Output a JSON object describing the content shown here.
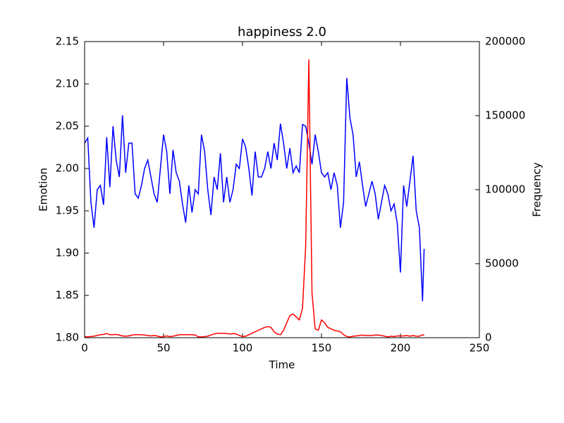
{
  "chart_data": {
    "type": "line",
    "title": "happiness 2.0",
    "x_label": "Time",
    "y_label": "Emotion",
    "y2_label": "Frequency",
    "x": [
      0,
      2,
      4,
      6,
      8,
      10,
      12,
      14,
      16,
      18,
      20,
      22,
      24,
      26,
      28,
      30,
      32,
      34,
      36,
      38,
      40,
      42,
      44,
      46,
      48,
      50,
      52,
      54,
      56,
      58,
      60,
      62,
      64,
      66,
      68,
      70,
      72,
      74,
      76,
      78,
      80,
      82,
      84,
      86,
      88,
      90,
      92,
      94,
      96,
      98,
      100,
      102,
      104,
      106,
      108,
      110,
      112,
      114,
      116,
      118,
      120,
      122,
      124,
      126,
      128,
      130,
      132,
      134,
      136,
      138,
      140,
      142,
      144,
      146,
      148,
      150,
      152,
      154,
      156,
      158,
      160,
      162,
      164,
      166,
      168,
      170,
      172,
      174,
      176,
      178,
      180,
      182,
      184,
      186,
      188,
      190,
      192,
      194,
      196,
      198,
      200,
      202,
      204,
      206,
      208,
      210,
      212,
      214,
      215
    ],
    "series": [
      {
        "name": "Emotion",
        "color": "#0000ff",
        "axis": "y",
        "values": [
          2.03,
          2.036,
          1.96,
          1.93,
          1.975,
          1.98,
          1.957,
          2.037,
          1.978,
          2.05,
          2.01,
          1.99,
          2.063,
          1.995,
          2.03,
          2.03,
          1.97,
          1.965,
          1.98,
          2.0,
          2.01,
          1.99,
          1.97,
          1.96,
          2.0,
          2.04,
          2.02,
          1.97,
          2.022,
          1.995,
          1.985,
          1.958,
          1.936,
          1.98,
          1.948,
          1.975,
          1.97,
          2.04,
          2.02,
          1.975,
          1.945,
          1.99,
          1.975,
          2.018,
          1.96,
          1.99,
          1.96,
          1.975,
          2.005,
          2.0,
          2.035,
          2.025,
          2.0,
          1.968,
          2.02,
          1.99,
          1.99,
          2.0,
          2.02,
          2.0,
          2.03,
          2.01,
          2.053,
          2.03,
          2.0,
          2.024,
          1.995,
          2.003,
          1.995,
          2.052,
          2.05,
          2.03,
          2.005,
          2.04,
          2.02,
          1.995,
          1.99,
          1.995,
          1.975,
          1.995,
          1.98,
          1.93,
          1.96,
          2.107,
          2.06,
          2.04,
          1.99,
          2.008,
          1.98,
          1.955,
          1.97,
          1.985,
          1.97,
          1.94,
          1.96,
          1.98,
          1.97,
          1.95,
          1.958,
          1.935,
          1.877,
          1.98,
          1.955,
          1.985,
          2.015,
          1.95,
          1.93,
          1.843,
          1.905
        ]
      },
      {
        "name": "Frequency",
        "color": "#ff0000",
        "axis": "y2",
        "values": [
          800,
          600,
          800,
          1000,
          1500,
          2000,
          2200,
          2800,
          2000,
          2000,
          2200,
          1800,
          1200,
          1000,
          1200,
          1800,
          2000,
          2000,
          2000,
          1800,
          1500,
          1200,
          1500,
          1200,
          500,
          800,
          1200,
          800,
          1000,
          1500,
          2000,
          2000,
          2000,
          2000,
          2000,
          1800,
          600,
          500,
          800,
          1000,
          1800,
          2500,
          3000,
          3000,
          3000,
          2800,
          2500,
          2800,
          2500,
          1500,
          800,
          1000,
          2000,
          3000,
          4000,
          5000,
          6000,
          7000,
          7500,
          7000,
          4000,
          2500,
          2000,
          5000,
          10000,
          15000,
          16000,
          14000,
          12000,
          20000,
          62000,
          188000,
          30000,
          6000,
          5000,
          12000,
          10000,
          7000,
          6000,
          5000,
          4500,
          4000,
          2000,
          800,
          500,
          1000,
          1200,
          1500,
          1800,
          1500,
          1500,
          1500,
          1800,
          1800,
          1500,
          1000,
          500,
          1000,
          800,
          1200,
          1200,
          1200,
          1500,
          1000,
          1500,
          1000,
          1000,
          2000,
          1500
        ]
      }
    ],
    "xlim": [
      0,
      250
    ],
    "xticks": [
      0,
      50,
      100,
      150,
      200,
      250
    ],
    "ylim": [
      1.8,
      2.15
    ],
    "yticks": [
      {
        "value": 1.8,
        "label": "1.80"
      },
      {
        "value": 1.85,
        "label": "1.85"
      },
      {
        "value": 1.9,
        "label": "1.90"
      },
      {
        "value": 1.95,
        "label": "1.95"
      },
      {
        "value": 2.0,
        "label": "2.00"
      },
      {
        "value": 2.05,
        "label": "2.05"
      },
      {
        "value": 2.1,
        "label": "2.10"
      },
      {
        "value": 2.15,
        "label": "2.15"
      }
    ],
    "y2lim": [
      0,
      200000
    ],
    "y2ticks": [
      0,
      50000,
      100000,
      150000,
      200000
    ]
  }
}
